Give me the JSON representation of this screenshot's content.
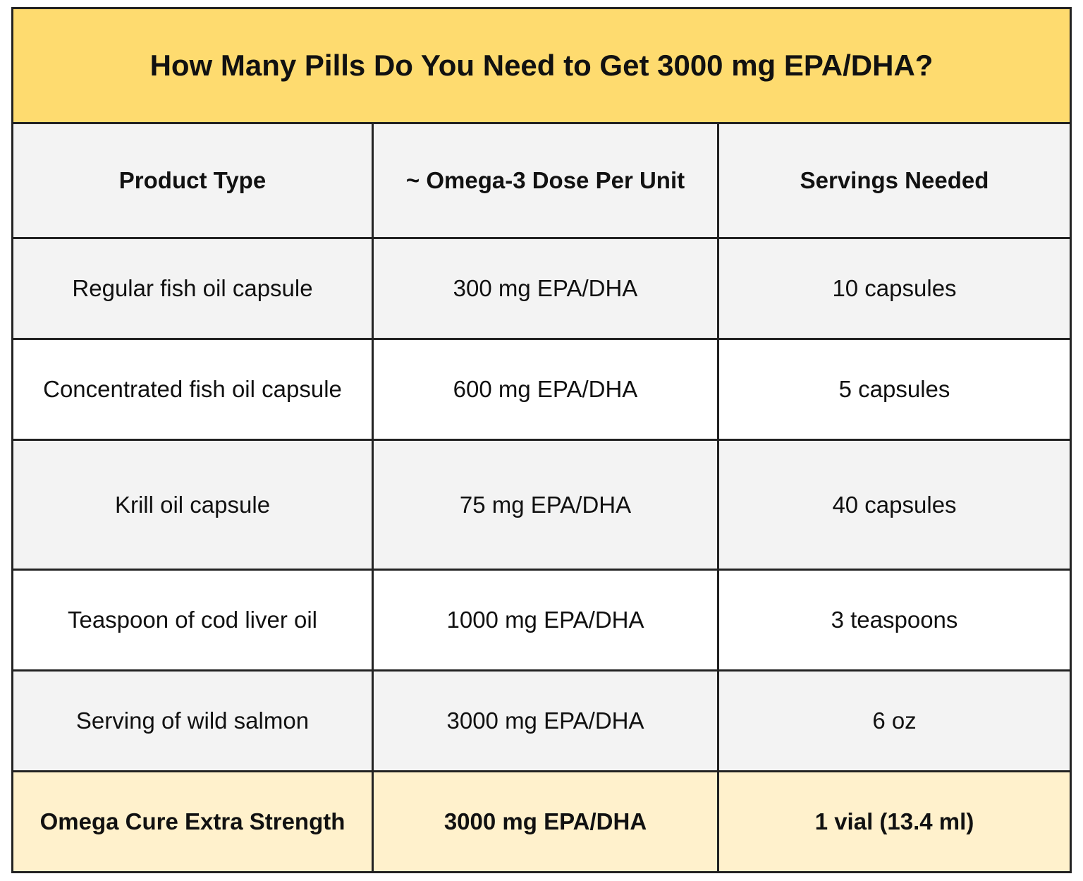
{
  "table": {
    "title": "How Many Pills Do You Need to Get 3000 mg EPA/DHA?",
    "header": [
      "Product Type",
      "~ Omega-3 Dose Per Unit",
      "Servings Needed"
    ],
    "rows": [
      [
        "Regular fish oil capsule",
        "300 mg EPA/DHA",
        "10 capsules"
      ],
      [
        "Concentrated fish oil capsule",
        "600 mg EPA/DHA",
        "5 capsules"
      ],
      [
        "Krill oil capsule",
        "75 mg EPA/DHA",
        "40 capsules"
      ],
      [
        "Teaspoon of cod liver oil",
        "1000 mg EPA/DHA",
        "3 teaspoons"
      ],
      [
        "Serving of wild salmon",
        "3000 mg EPA/DHA",
        "6 oz"
      ],
      [
        "Omega Cure Extra Strength",
        "3000 mg EPA/DHA",
        "1 vial (13.4 ml)"
      ]
    ]
  }
}
